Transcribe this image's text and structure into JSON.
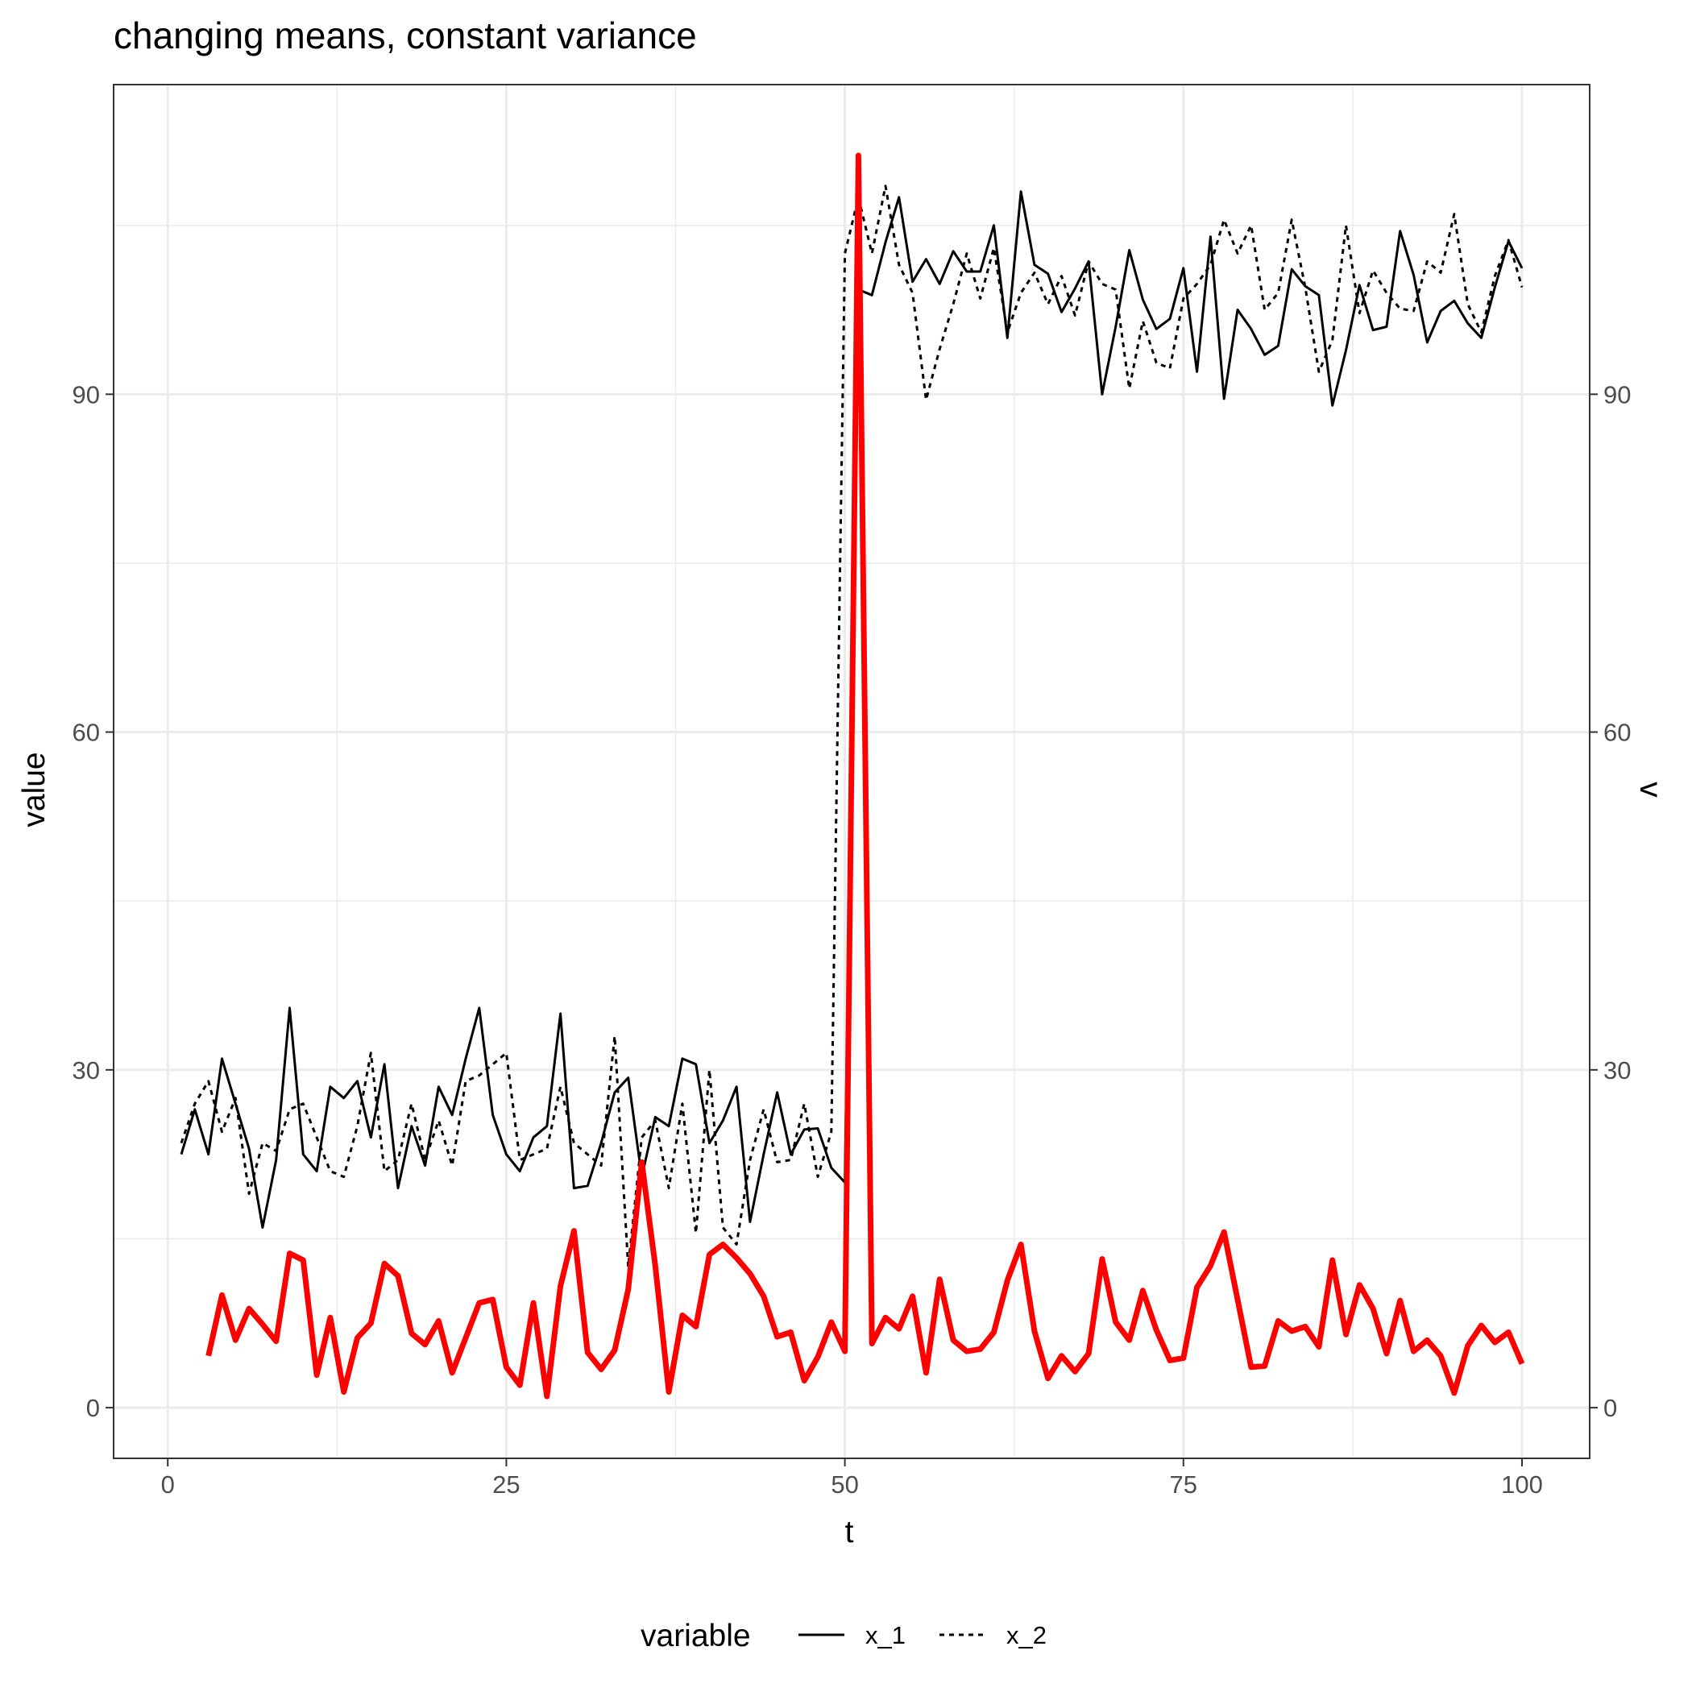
{
  "chart_data": {
    "type": "line",
    "title": "changing means, constant variance",
    "xlabel": "t",
    "ylabel": "value",
    "y2label": "v",
    "xlim": [
      -4,
      105
    ],
    "ylim": [
      -4.5,
      117.5
    ],
    "x_ticks": [
      0,
      25,
      50,
      75,
      100
    ],
    "y_ticks": [
      0,
      30,
      60,
      90
    ],
    "grid": true,
    "legend": {
      "position": "bottom",
      "title": "variable"
    },
    "colors": {
      "x_1": "#000000",
      "x_2": "#000000",
      "v": "#ff0000",
      "grid": "#ebebeb",
      "frame": "#333333"
    },
    "series": [
      {
        "name": "x_1",
        "linetype": "solid",
        "x": [
          1,
          2,
          3,
          4,
          5,
          6,
          7,
          8,
          9,
          10,
          11,
          12,
          13,
          14,
          15,
          16,
          17,
          18,
          19,
          20,
          21,
          22,
          23,
          24,
          25,
          26,
          27,
          28,
          29,
          30,
          31,
          32,
          33,
          34,
          35,
          36,
          37,
          38,
          39,
          40,
          41,
          42,
          43,
          44,
          45,
          46,
          47,
          48,
          49,
          50,
          51,
          52,
          53,
          54,
          55,
          56,
          57,
          58,
          59,
          60,
          61,
          62,
          63,
          64,
          65,
          66,
          67,
          68,
          69,
          70,
          71,
          72,
          73,
          74,
          75,
          76,
          77,
          78,
          79,
          80,
          81,
          82,
          83,
          84,
          85,
          86,
          87,
          88,
          89,
          90,
          91,
          92,
          93,
          94,
          95,
          96,
          97,
          98,
          99,
          100
        ],
        "y": [
          22.5,
          26.5,
          22.5,
          31,
          27,
          23,
          16,
          22,
          35.5,
          22.5,
          21,
          28.5,
          27.5,
          29,
          24,
          30.5,
          19.5,
          25,
          21.5,
          28.5,
          26,
          31,
          35.5,
          26,
          22.5,
          21,
          24,
          25,
          35,
          19.5,
          19.7,
          23.5,
          28,
          29.3,
          20.5,
          25.8,
          25,
          31,
          30.5,
          23.5,
          25.5,
          28.5,
          16.5,
          22.5,
          28,
          22.5,
          24.7,
          24.8,
          21.3,
          20,
          99.3,
          98.8,
          103.5,
          107.5,
          100,
          102,
          99.8,
          102.7,
          100.9,
          100.9,
          105,
          95,
          108,
          101.5,
          100.7,
          97.3,
          99.4,
          101.8,
          90,
          96,
          102.8,
          98.4,
          95.8,
          96.7,
          101.2,
          92,
          104,
          89.6,
          97.5,
          95.8,
          93.5,
          94.3,
          101.1,
          99.6,
          98.8,
          89,
          93.9,
          99.7,
          95.7,
          96,
          104.5,
          100.6,
          94.6,
          97.4,
          98.3,
          96.3,
          95,
          99.5,
          103.6,
          101.2
        ]
      },
      {
        "name": "x_2",
        "linetype": "dashed",
        "x": [
          1,
          2,
          3,
          4,
          5,
          6,
          7,
          8,
          9,
          10,
          11,
          12,
          13,
          14,
          15,
          16,
          17,
          18,
          19,
          20,
          21,
          22,
          23,
          24,
          25,
          26,
          27,
          28,
          29,
          30,
          31,
          32,
          33,
          34,
          35,
          36,
          37,
          38,
          39,
          40,
          41,
          42,
          43,
          44,
          45,
          46,
          47,
          48,
          49,
          50,
          51,
          52,
          53,
          54,
          55,
          56,
          57,
          58,
          59,
          60,
          61,
          62,
          63,
          64,
          65,
          66,
          67,
          68,
          69,
          70,
          71,
          72,
          73,
          74,
          75,
          76,
          77,
          78,
          79,
          80,
          81,
          82,
          83,
          84,
          85,
          86,
          87,
          88,
          89,
          90,
          91,
          92,
          93,
          94,
          95,
          96,
          97,
          98,
          99,
          100
        ],
        "y": [
          23.5,
          27,
          29,
          24.5,
          27.5,
          19,
          23.5,
          22.8,
          26.5,
          27,
          24,
          21,
          20.5,
          25,
          31.5,
          21,
          22,
          27,
          22,
          25.5,
          21.5,
          29,
          29.5,
          30.5,
          31.5,
          22,
          22.5,
          23,
          28.5,
          23.5,
          22.5,
          21.5,
          33,
          12.5,
          24,
          25.5,
          19.5,
          27,
          15.5,
          30,
          16,
          14.5,
          22,
          26.5,
          21.8,
          22,
          27,
          20.5,
          24.5,
          102.5,
          107.5,
          102.5,
          108.5,
          101.5,
          99,
          89.5,
          94,
          98,
          102.5,
          98.5,
          103,
          95.5,
          99,
          100.8,
          98,
          100.5,
          97,
          101.8,
          99.8,
          99.3,
          90.5,
          96.5,
          92.8,
          92.3,
          98.5,
          99.8,
          101.5,
          105.5,
          102.5,
          105,
          97.5,
          99,
          105.5,
          99.5,
          92,
          94.8,
          105,
          97.2,
          101,
          99,
          97.6,
          97.4,
          101.8,
          100.8,
          106,
          98,
          95.5,
          100.5,
          103.7,
          99.5
        ]
      },
      {
        "name": "v",
        "linetype": "solid",
        "x": [
          3,
          4,
          5,
          6,
          7,
          8,
          9,
          10,
          11,
          12,
          13,
          14,
          15,
          16,
          17,
          18,
          19,
          20,
          21,
          22,
          23,
          24,
          25,
          26,
          27,
          28,
          29,
          30,
          31,
          32,
          33,
          34,
          35,
          36,
          37,
          38,
          39,
          40,
          41,
          42,
          43,
          44,
          45,
          46,
          47,
          48,
          49,
          50,
          51,
          52,
          53,
          54,
          55,
          56,
          57,
          58,
          59,
          60,
          61,
          62,
          63,
          64,
          65,
          66,
          67,
          68,
          69,
          70,
          71,
          72,
          73,
          74,
          75,
          76,
          77,
          78,
          79,
          80,
          81,
          82,
          83,
          84,
          85,
          86,
          87,
          88,
          89,
          90,
          91,
          92,
          93,
          94,
          95,
          96,
          97,
          98,
          99,
          100
        ],
        "y": [
          4.6,
          10,
          6,
          8.8,
          7.4,
          5.9,
          13.7,
          13.1,
          2.9,
          8,
          1.4,
          6.2,
          7.5,
          12.8,
          11.7,
          6.6,
          5.6,
          7.7,
          3.1,
          6.2,
          9.3,
          9.6,
          3.6,
          2,
          9.3,
          1,
          10.8,
          15.7,
          4.9,
          3.4,
          5.1,
          10.5,
          21.8,
          12.6,
          1.4,
          8.2,
          7.2,
          13.6,
          14.5,
          13.3,
          11.9,
          9.9,
          6.3,
          6.7,
          2.4,
          4.5,
          7.6,
          5,
          111.2,
          5.7,
          8,
          7,
          9.9,
          3.1,
          11.4,
          6,
          5,
          5.2,
          6.7,
          11.3,
          14.5,
          6.8,
          2.6,
          4.6,
          3.2,
          4.8,
          13.2,
          7.6,
          6,
          10.4,
          6.9,
          4.2,
          4.4,
          10.7,
          12.6,
          15.6,
          9.6,
          3.6,
          3.7,
          7.7,
          6.8,
          7.2,
          5.4,
          13.1,
          6.5,
          10.9,
          8.8,
          4.8,
          9.5,
          5,
          6,
          4.6,
          1.3,
          5.5,
          7.3,
          5.8,
          6.7,
          3.9
        ]
      }
    ]
  }
}
